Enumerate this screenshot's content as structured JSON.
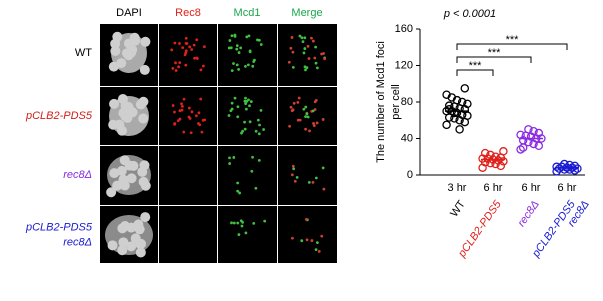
{
  "panel": {
    "columns": [
      {
        "label": "DAPI",
        "color": "#000000"
      },
      {
        "label": "Rec8",
        "color": "#e0201a"
      },
      {
        "label": "Mcd1",
        "color": "#1aa64a"
      },
      {
        "label": "Merge",
        "color": "#1aa64a"
      }
    ],
    "rows": [
      {
        "lines": [
          "WT"
        ],
        "color": "#000000"
      },
      {
        "lines": [
          "pCLB2-PDS5"
        ],
        "color": "#d0201a"
      },
      {
        "lines": [
          "rec8Δ"
        ],
        "color": "#8a2be2"
      },
      {
        "lines": [
          "pCLB2-PDS5",
          "rec8Δ"
        ],
        "color": "#1a1ad0"
      }
    ]
  },
  "chart_data": {
    "type": "scatter",
    "title": "p < 0.0001",
    "ylabel": [
      "The number of Mcd1 foci",
      "per cell"
    ],
    "categories": [
      "3 hr",
      "6 hr",
      "6 hr",
      "6 hr"
    ],
    "ylim": [
      0,
      160
    ],
    "yticks": [
      0,
      40,
      80,
      120,
      160
    ],
    "annotations": [
      "***",
      "***",
      "***"
    ],
    "series": [
      {
        "lines": [
          "WT"
        ],
        "color": "#000000",
        "mean": 70,
        "values": [
          55,
          58,
          60,
          62,
          63,
          65,
          66,
          68,
          70,
          70,
          72,
          73,
          75,
          76,
          78,
          80,
          82,
          85,
          88,
          95,
          50,
          68,
          72
        ]
      },
      {
        "lines": [
          "pCLB2-PDS5"
        ],
        "color": "#e0201a",
        "mean": 17,
        "values": [
          8,
          10,
          12,
          13,
          14,
          15,
          16,
          17,
          18,
          18,
          19,
          20,
          22,
          24,
          26
        ]
      },
      {
        "lines": [
          "rec8Δ"
        ],
        "color": "#8a2be2",
        "mean": 40,
        "values": [
          28,
          32,
          34,
          36,
          38,
          40,
          40,
          42,
          43,
          44,
          46,
          48,
          50,
          30
        ]
      },
      {
        "lines": [
          "pCLB2-PDS5",
          "rec8Δ"
        ],
        "color": "#1a1ad0",
        "mean": 8,
        "values": [
          4,
          5,
          6,
          6,
          7,
          7,
          8,
          8,
          9,
          9,
          10,
          11,
          12
        ]
      }
    ]
  }
}
